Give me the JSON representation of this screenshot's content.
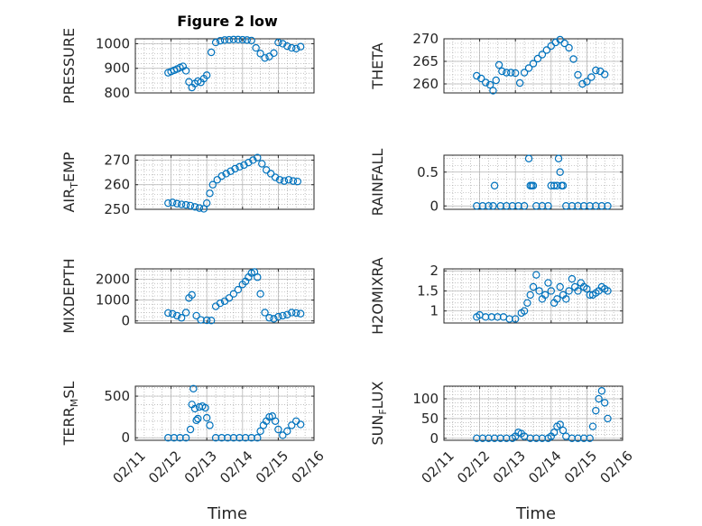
{
  "figure": {
    "title": "Figure 2 low",
    "marker_color": "#0072BD",
    "x_label": "Time"
  },
  "chart_data": [
    {
      "type": "scatter",
      "ylabel": "PRESSURE",
      "xlim": [
        "02/11",
        "02/16"
      ],
      "ylim": [
        800,
        1020
      ],
      "yticks": [
        800,
        900,
        1000
      ],
      "grid": true,
      "x": [
        "02/11 22:00",
        "02/12 00:00",
        "02/12 02:00",
        "02/12 04:00",
        "02/12 06:00",
        "02/12 08:00",
        "02/12 10:00",
        "02/12 12:00",
        "02/12 14:00",
        "02/12 16:00",
        "02/12 18:00",
        "02/12 20:00",
        "02/12 22:00",
        "02/13 00:00",
        "02/13 03:00",
        "02/13 06:00",
        "02/13 09:00",
        "02/13 12:00",
        "02/13 15:00",
        "02/13 18:00",
        "02/13 21:00",
        "02/14 00:00",
        "02/14 03:00",
        "02/14 06:00",
        "02/14 09:00",
        "02/14 12:00",
        "02/14 15:00",
        "02/14 18:00",
        "02/14 21:00",
        "02/15 00:00",
        "02/15 03:00",
        "02/15 06:00",
        "02/15 09:00",
        "02/15 12:00",
        "02/15 15:00"
      ],
      "y": [
        882,
        887,
        892,
        897,
        903,
        908,
        890,
        845,
        822,
        838,
        848,
        843,
        858,
        872,
        965,
        1005,
        1012,
        1015,
        1016,
        1017,
        1017,
        1016,
        1015,
        1013,
        983,
        960,
        942,
        948,
        962,
        1005,
        1000,
        990,
        983,
        980,
        988
      ]
    },
    {
      "type": "scatter",
      "ylabel": "THETA",
      "xlim": [
        "02/11",
        "02/16"
      ],
      "ylim": [
        258,
        270
      ],
      "yticks": [
        260,
        265,
        270
      ],
      "grid": true,
      "x": [
        "02/11 22:00",
        "02/12 01:00",
        "02/12 04:00",
        "02/12 07:00",
        "02/12 09:00",
        "02/12 11:00",
        "02/12 13:00",
        "02/12 15:00",
        "02/12 18:00",
        "02/12 21:00",
        "02/13 00:00",
        "02/13 03:00",
        "02/13 06:00",
        "02/13 09:00",
        "02/13 12:00",
        "02/13 15:00",
        "02/13 18:00",
        "02/13 21:00",
        "02/14 00:00",
        "02/14 03:00",
        "02/14 06:00",
        "02/14 09:00",
        "02/14 12:00",
        "02/14 15:00",
        "02/14 18:00",
        "02/14 21:00",
        "02/15 00:00",
        "02/15 03:00",
        "02/15 06:00",
        "02/15 09:00",
        "02/15 12:00"
      ],
      "y": [
        261.8,
        261.2,
        260.3,
        259.8,
        258.5,
        260.8,
        264.2,
        262.8,
        262.5,
        262.5,
        262.4,
        260.2,
        262.5,
        263.5,
        264.5,
        265.6,
        266.5,
        267.5,
        268.4,
        269.2,
        269.8,
        269.0,
        268.0,
        265.5,
        262.0,
        260.0,
        260.5,
        261.5,
        263.0,
        262.8,
        262.1
      ]
    },
    {
      "type": "scatter",
      "ylabel": "AIR",
      "ylabel_sub": "T",
      "ylabel_tail": "EMP",
      "xlim": [
        "02/11",
        "02/16"
      ],
      "ylim": [
        250,
        272
      ],
      "yticks": [
        250,
        260,
        270
      ],
      "grid": true,
      "x": [
        "02/11 22:00",
        "02/12 01:00",
        "02/12 04:00",
        "02/12 07:00",
        "02/12 10:00",
        "02/12 13:00",
        "02/12 16:00",
        "02/12 19:00",
        "02/12 22:00",
        "02/13 00:00",
        "02/13 02:00",
        "02/13 04:00",
        "02/13 07:00",
        "02/13 10:00",
        "02/13 13:00",
        "02/13 16:00",
        "02/13 19:00",
        "02/13 22:00",
        "02/14 01:00",
        "02/14 04:00",
        "02/14 07:00",
        "02/14 10:00",
        "02/14 13:00",
        "02/14 16:00",
        "02/14 19:00",
        "02/14 22:00",
        "02/15 01:00",
        "02/15 04:00",
        "02/15 07:00",
        "02/15 10:00",
        "02/15 13:00"
      ],
      "y": [
        252.5,
        252.8,
        252.3,
        252.0,
        251.8,
        251.5,
        251.0,
        250.5,
        250.2,
        252.5,
        256.5,
        260.0,
        262.0,
        263.5,
        264.5,
        265.5,
        266.5,
        267.3,
        268.0,
        269.0,
        270.0,
        271.0,
        268.5,
        266.0,
        264.5,
        263.0,
        262.0,
        261.5,
        262.0,
        261.5,
        261.3
      ]
    },
    {
      "type": "scatter",
      "ylabel": "RAINFALL",
      "xlim": [
        "02/11",
        "02/16"
      ],
      "ylim": [
        -0.05,
        0.75
      ],
      "yticks": [
        0,
        0.5
      ],
      "grid": true,
      "x": [
        "02/11 22:00",
        "02/12 02:00",
        "02/12 06:00",
        "02/12 09:00",
        "02/12 10:00",
        "02/12 14:00",
        "02/12 18:00",
        "02/12 22:00",
        "02/13 02:00",
        "02/13 06:00",
        "02/13 09:00",
        "02/13 10:00",
        "02/13 11:00",
        "02/13 12:00",
        "02/13 14:00",
        "02/13 18:00",
        "02/13 22:00",
        "02/14 00:00",
        "02/14 02:00",
        "02/14 04:00",
        "02/14 05:00",
        "02/14 06:00",
        "02/14 07:00",
        "02/14 08:00",
        "02/14 10:00",
        "02/14 14:00",
        "02/14 18:00",
        "02/14 22:00",
        "02/15 02:00",
        "02/15 06:00",
        "02/15 10:00",
        "02/15 14:00"
      ],
      "y": [
        0,
        0,
        0,
        0,
        0.3,
        0,
        0,
        0,
        0,
        0,
        0.7,
        0.3,
        0.3,
        0.3,
        0,
        0,
        0,
        0.3,
        0.3,
        0.3,
        0.7,
        0.5,
        0.3,
        0.3,
        0,
        0,
        0,
        0,
        0,
        0,
        0,
        0
      ]
    },
    {
      "type": "scatter",
      "ylabel": "MIXDEPTH",
      "xlim": [
        "02/11",
        "02/16"
      ],
      "ylim": [
        -100,
        2500
      ],
      "yticks": [
        0,
        1000,
        2000
      ],
      "grid": true,
      "x": [
        "02/11 22:00",
        "02/12 01:00",
        "02/12 04:00",
        "02/12 07:00",
        "02/12 10:00",
        "02/12 12:00",
        "02/12 14:00",
        "02/12 17:00",
        "02/12 20:00",
        "02/13 00:00",
        "02/13 03:00",
        "02/13 06:00",
        "02/13 09:00",
        "02/13 12:00",
        "02/13 15:00",
        "02/13 18:00",
        "02/13 21:00",
        "02/14 00:00",
        "02/14 02:00",
        "02/14 04:00",
        "02/14 06:00",
        "02/14 08:00",
        "02/14 10:00",
        "02/14 12:00",
        "02/14 15:00",
        "02/14 18:00",
        "02/14 21:00",
        "02/15 00:00",
        "02/15 03:00",
        "02/15 06:00",
        "02/15 09:00",
        "02/15 12:00",
        "02/15 15:00"
      ],
      "y": [
        380,
        340,
        250,
        150,
        400,
        1100,
        1250,
        250,
        50,
        30,
        20,
        700,
        850,
        950,
        1100,
        1300,
        1500,
        1750,
        1900,
        2100,
        2300,
        2350,
        2100,
        1300,
        400,
        150,
        100,
        200,
        250,
        300,
        400,
        380,
        350
      ]
    },
    {
      "type": "scatter",
      "ylabel": "H2OMIXRA",
      "xlim": [
        "02/11",
        "02/16"
      ],
      "ylim": [
        0.7,
        2.05
      ],
      "yticks": [
        1,
        1.5,
        2
      ],
      "grid": true,
      "x": [
        "02/11 22:00",
        "02/12 00:00",
        "02/12 04:00",
        "02/12 08:00",
        "02/12 12:00",
        "02/12 16:00",
        "02/12 20:00",
        "02/13 00:00",
        "02/13 04:00",
        "02/13 06:00",
        "02/13 08:00",
        "02/13 10:00",
        "02/13 12:00",
        "02/13 14:00",
        "02/13 16:00",
        "02/13 18:00",
        "02/13 20:00",
        "02/13 22:00",
        "02/14 00:00",
        "02/14 02:00",
        "02/14 04:00",
        "02/14 06:00",
        "02/14 08:00",
        "02/14 10:00",
        "02/14 12:00",
        "02/14 14:00",
        "02/14 16:00",
        "02/14 18:00",
        "02/14 20:00",
        "02/14 22:00",
        "02/15 00:00",
        "02/15 02:00",
        "02/15 04:00",
        "02/15 06:00",
        "02/15 08:00",
        "02/15 10:00",
        "02/15 12:00",
        "02/15 14:00"
      ],
      "y": [
        0.85,
        0.9,
        0.85,
        0.85,
        0.85,
        0.85,
        0.8,
        0.8,
        0.95,
        1.0,
        1.2,
        1.4,
        1.6,
        1.9,
        1.5,
        1.3,
        1.4,
        1.7,
        1.5,
        1.2,
        1.3,
        1.6,
        1.4,
        1.3,
        1.5,
        1.8,
        1.6,
        1.5,
        1.7,
        1.6,
        1.55,
        1.4,
        1.4,
        1.45,
        1.5,
        1.6,
        1.55,
        1.5
      ]
    },
    {
      "type": "scatter",
      "ylabel": "TERR",
      "ylabel_sub": "M",
      "ylabel_tail": "SL",
      "xlim": [
        "02/11",
        "02/16"
      ],
      "ylim": [
        -30,
        620
      ],
      "yticks": [
        0,
        500
      ],
      "grid": true,
      "x": [
        "02/11 22:00",
        "02/12 02:00",
        "02/12 06:00",
        "02/12 10:00",
        "02/12 13:00",
        "02/12 14:00",
        "02/12 15:00",
        "02/12 16:00",
        "02/12 17:00",
        "02/12 18:00",
        "02/12 19:00",
        "02/12 21:00",
        "02/12 23:00",
        "02/13 00:00",
        "02/13 02:00",
        "02/13 06:00",
        "02/13 10:00",
        "02/13 14:00",
        "02/13 18:00",
        "02/13 22:00",
        "02/14 02:00",
        "02/14 06:00",
        "02/14 10:00",
        "02/14 12:00",
        "02/14 14:00",
        "02/14 16:00",
        "02/14 18:00",
        "02/14 20:00",
        "02/14 22:00",
        "02/15 00:00",
        "02/15 03:00",
        "02/15 06:00",
        "02/15 09:00",
        "02/15 12:00",
        "02/15 15:00"
      ],
      "y": [
        0,
        0,
        0,
        0,
        100,
        400,
        590,
        350,
        210,
        230,
        370,
        380,
        360,
        240,
        150,
        0,
        0,
        0,
        0,
        0,
        0,
        0,
        0,
        80,
        150,
        200,
        250,
        260,
        200,
        100,
        30,
        80,
        150,
        200,
        160
      ]
    },
    {
      "type": "scatter",
      "ylabel": "SUN",
      "ylabel_sub": "F",
      "ylabel_tail": "LUX",
      "xlim": [
        "02/11",
        "02/16"
      ],
      "ylim": [
        -5,
        132
      ],
      "yticks": [
        0,
        50,
        100
      ],
      "grid": true,
      "x": [
        "02/11 22:00",
        "02/12 02:00",
        "02/12 06:00",
        "02/12 10:00",
        "02/12 14:00",
        "02/12 18:00",
        "02/12 22:00",
        "02/13 00:00",
        "02/13 02:00",
        "02/13 04:00",
        "02/13 06:00",
        "02/13 10:00",
        "02/13 14:00",
        "02/13 18:00",
        "02/13 22:00",
        "02/14 00:00",
        "02/14 02:00",
        "02/14 04:00",
        "02/14 06:00",
        "02/14 08:00",
        "02/14 10:00",
        "02/14 14:00",
        "02/14 18:00",
        "02/14 22:00",
        "02/15 02:00",
        "02/15 04:00",
        "02/15 06:00",
        "02/15 08:00",
        "02/15 10:00",
        "02/15 12:00",
        "02/15 14:00"
      ],
      "y": [
        0,
        0,
        0,
        0,
        0,
        0,
        0,
        5,
        15,
        12,
        5,
        0,
        0,
        0,
        0,
        5,
        15,
        30,
        35,
        20,
        5,
        0,
        0,
        0,
        0,
        30,
        70,
        100,
        120,
        90,
        50
      ]
    }
  ]
}
